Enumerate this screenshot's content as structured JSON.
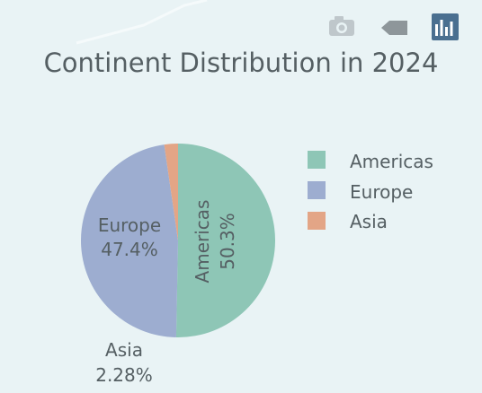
{
  "chart_data": {
    "type": "pie",
    "title": "Continent Distribution in 2024",
    "slices": [
      {
        "label": "Americas",
        "value": 50.3,
        "display": "50.3%",
        "color": "#8ec6b6"
      },
      {
        "label": "Europe",
        "value": 47.4,
        "display": "47.4%",
        "color": "#9dadd0"
      },
      {
        "label": "Asia",
        "value": 2.28,
        "display": "2.28%",
        "color": "#e3a586"
      }
    ],
    "legend_placement": "right"
  },
  "toolbar": {
    "icons": [
      "camera-icon",
      "tag-icon",
      "bar-chart-icon"
    ]
  }
}
